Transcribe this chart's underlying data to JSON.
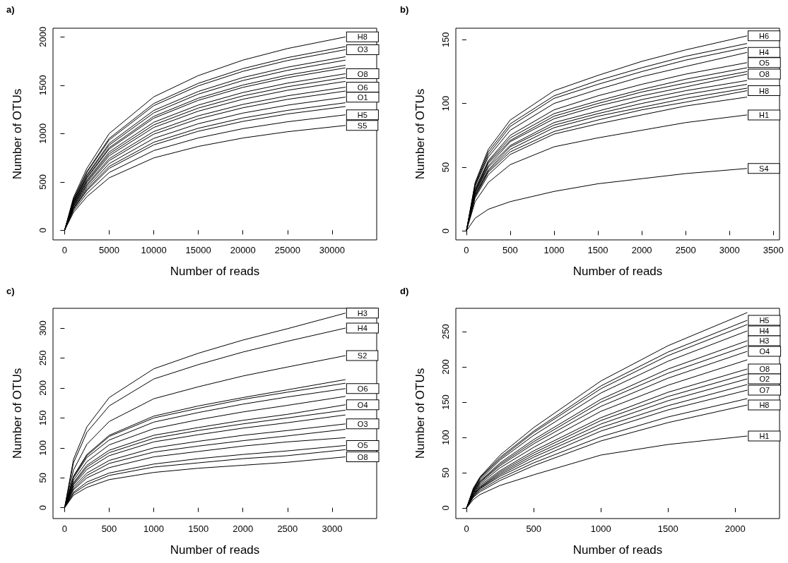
{
  "chart_data": [
    {
      "type": "line",
      "title": "a)",
      "xlabel": "Number of reads",
      "ylabel": "Number of OTUs",
      "color": "#000000",
      "marker": "none",
      "line_style": "solid",
      "grid": false,
      "legend": "right",
      "x": [
        0,
        1000,
        2500,
        5000,
        10000,
        15000,
        20000,
        25000,
        31500
      ],
      "xlim": [
        -1300,
        35000
      ],
      "xticks": [
        0,
        5000,
        10000,
        15000,
        20000,
        25000,
        30000
      ],
      "ylim": [
        -100,
        2090
      ],
      "yticks": [
        0,
        500,
        1000,
        1500,
        2000
      ],
      "series": [
        {
          "name": "H8",
          "values": [
            0,
            340,
            640,
            1000,
            1380,
            1600,
            1760,
            1880,
            2000
          ]
        },
        {
          "values": [
            0,
            323,
            608,
            950,
            1311,
            1520,
            1672,
            1786,
            1900
          ]
        },
        {
          "name": "O3",
          "values": [
            0,
            318,
            598,
            934,
            1289,
            1494,
            1644,
            1756,
            1868
          ]
        },
        {
          "values": [
            0,
            305,
            574,
            898,
            1239,
            1436,
            1580,
            1687,
            1795
          ]
        },
        {
          "values": [
            0,
            299,
            563,
            880,
            1214,
            1408,
            1549,
            1654,
            1760
          ]
        },
        {
          "values": [
            0,
            290,
            546,
            854,
            1178,
            1366,
            1502,
            1605,
            1707
          ]
        },
        {
          "values": [
            0,
            286,
            538,
            840,
            1159,
            1344,
            1478,
            1579,
            1680
          ]
        },
        {
          "name": "O8",
          "values": [
            0,
            275,
            518,
            810,
            1117,
            1295,
            1425,
            1522,
            1619
          ]
        },
        {
          "values": [
            0,
            269,
            506,
            790,
            1090,
            1264,
            1390,
            1485,
            1580
          ]
        },
        {
          "values": [
            0,
            262,
            493,
            770,
            1063,
            1232,
            1355,
            1448,
            1540
          ]
        },
        {
          "name": "O6",
          "values": [
            0,
            252,
            474,
            740,
            1021,
            1184,
            1302,
            1391,
            1480
          ]
        },
        {
          "values": [
            0,
            245,
            461,
            720,
            994,
            1152,
            1267,
            1354,
            1440
          ]
        },
        {
          "name": "O1",
          "values": [
            0,
            234,
            441,
            689,
            950,
            1102,
            1212,
            1294,
            1377
          ]
        },
        {
          "values": [
            0,
            224,
            422,
            660,
            910,
            1055,
            1161,
            1240,
            1319
          ]
        },
        {
          "values": [
            0,
            218,
            410,
            640,
            883,
            1024,
            1126,
            1203,
            1280
          ]
        },
        {
          "name": "H5",
          "values": [
            0,
            203,
            382,
            597,
            824,
            955,
            1051,
            1122,
            1194
          ]
        },
        {
          "name": "S5",
          "values": [
            0,
            184,
            347,
            542,
            748,
            867,
            954,
            1019,
            1084
          ]
        }
      ]
    },
    {
      "type": "line",
      "title": "b)",
      "xlabel": "Number of reads",
      "ylabel": "Number of OTUs",
      "color": "#000000",
      "marker": "none",
      "line_style": "solid",
      "grid": false,
      "legend": "right",
      "x": [
        0,
        100,
        250,
        500,
        1000,
        1500,
        2000,
        2500,
        3200
      ],
      "xlim": [
        -120,
        3570
      ],
      "xticks": [
        0,
        500,
        1000,
        1500,
        2000,
        2500,
        3000,
        3500
      ],
      "ylim": [
        -7,
        159
      ],
      "yticks": [
        0,
        50,
        100,
        150
      ],
      "series": [
        {
          "name": "H6",
          "values": [
            0,
            38,
            64,
            87,
            110,
            122,
            133,
            142,
            153
          ]
        },
        {
          "values": [
            0,
            37,
            62,
            84,
            106,
            118,
            128,
            137,
            147
          ]
        },
        {
          "values": [
            0,
            36,
            60,
            82,
            104,
            115,
            125,
            134,
            144
          ]
        },
        {
          "name": "H4",
          "values": [
            0,
            35,
            58,
            79,
            100,
            111,
            121,
            129,
            140
          ]
        },
        {
          "name": "O5",
          "values": [
            0,
            33,
            55,
            75,
            95,
            106,
            115,
            123,
            132
          ]
        },
        {
          "values": [
            0,
            32,
            54,
            73,
            92,
            102,
            111,
            119,
            128
          ]
        },
        {
          "values": [
            0,
            31,
            53,
            71,
            90,
            100,
            109,
            116,
            125
          ]
        },
        {
          "name": "O8",
          "values": [
            0,
            31,
            51,
            70,
            88,
            98,
            106,
            113,
            123
          ]
        },
        {
          "values": [
            0,
            30,
            50,
            67,
            85,
            94,
            103,
            110,
            118
          ]
        },
        {
          "values": [
            0,
            29,
            48,
            66,
            83,
            92,
            100,
            107,
            115
          ]
        },
        {
          "values": [
            0,
            28,
            47,
            64,
            81,
            90,
            97,
            104,
            112
          ]
        },
        {
          "name": "H8",
          "values": [
            0,
            27,
            46,
            62,
            78,
            87,
            95,
            101,
            110
          ]
        },
        {
          "values": [
            0,
            26,
            44,
            60,
            76,
            84,
            91,
            98,
            105
          ]
        },
        {
          "name": "H1",
          "values": [
            0,
            23,
            38,
            52,
            66,
            73,
            79,
            85,
            91
          ]
        },
        {
          "name": "S4",
          "values": [
            0,
            10,
            17,
            23,
            31,
            37,
            41,
            45,
            49
          ]
        }
      ]
    },
    {
      "type": "line",
      "title": "c)",
      "xlabel": "Number of reads",
      "ylabel": "Number of OTUs",
      "color": "#000000",
      "marker": "none",
      "line_style": "solid",
      "grid": false,
      "legend": "right",
      "x": [
        0,
        100,
        250,
        500,
        1000,
        1500,
        2000,
        2500,
        3150
      ],
      "xlim": [
        -130,
        3500
      ],
      "xticks": [
        0,
        500,
        1000,
        1500,
        2000,
        2500,
        3000
      ],
      "ylim": [
        -18,
        333
      ],
      "yticks": [
        0,
        50,
        100,
        150,
        200,
        250,
        300
      ],
      "series": [
        {
          "name": "H3",
          "values": [
            0,
            81,
            135,
            184,
            232,
            258,
            280,
            299,
            325
          ]
        },
        {
          "name": "H4",
          "values": [
            0,
            75,
            126,
            170,
            215,
            239,
            260,
            278,
            300
          ]
        },
        {
          "name": "S2",
          "values": [
            0,
            63,
            106,
            144,
            182,
            202,
            220,
            235,
            254
          ]
        },
        {
          "values": [
            0,
            53,
            89,
            121,
            153,
            170,
            184,
            197,
            214
          ]
        },
        {
          "values": [
            0,
            52,
            87,
            119,
            150,
            166,
            181,
            193,
            208
          ]
        },
        {
          "name": "O6",
          "values": [
            0,
            50,
            84,
            113,
            143,
            159,
            173,
            185,
            199
          ]
        },
        {
          "values": [
            0,
            46,
            77,
            105,
            132,
            147,
            160,
            171,
            186
          ]
        },
        {
          "name": "O4",
          "values": [
            0,
            42,
            71,
            96,
            121,
            134,
            146,
            156,
            172
          ]
        },
        {
          "values": [
            0,
            40,
            68,
            92,
            116,
            129,
            140,
            150,
            163
          ]
        },
        {
          "values": [
            0,
            38,
            64,
            87,
            110,
            122,
            133,
            142,
            155
          ]
        },
        {
          "name": "O3",
          "values": [
            0,
            35,
            58,
            79,
            100,
            111,
            121,
            129,
            140
          ]
        },
        {
          "values": [
            0,
            32,
            54,
            74,
            93,
            103,
            112,
            120,
            131
          ]
        },
        {
          "values": [
            0,
            30,
            50,
            67,
            85,
            94,
            103,
            110,
            117
          ]
        },
        {
          "name": "O5",
          "values": [
            0,
            26,
            43,
            58,
            73,
            82,
            89,
            95,
            104
          ]
        },
        {
          "values": [
            0,
            24,
            39,
            54,
            68,
            75,
            82,
            87,
            97
          ]
        },
        {
          "name": "O8",
          "values": [
            0,
            21,
            34,
            47,
            59,
            66,
            71,
            76,
            85
          ]
        }
      ]
    },
    {
      "type": "line",
      "title": "d)",
      "xlabel": "Number of reads",
      "ylabel": "Number of OTUs",
      "color": "#000000",
      "marker": "none",
      "line_style": "solid",
      "grid": false,
      "legend": "right",
      "x": [
        0,
        50,
        100,
        250,
        500,
        1000,
        1500,
        2090
      ],
      "xlim": [
        -80,
        2330
      ],
      "xticks": [
        0,
        500,
        1000,
        1500,
        2000
      ],
      "ylim": [
        -15,
        283
      ],
      "yticks": [
        0,
        50,
        100,
        150,
        200,
        250
      ],
      "series": [
        {
          "values": [
            0,
            28,
            44,
            75,
            114,
            180,
            230,
            277
          ]
        },
        {
          "name": "H5",
          "values": [
            0,
            27,
            43,
            72,
            109,
            173,
            221,
            266
          ]
        },
        {
          "values": [
            0,
            26,
            42,
            70,
            107,
            169,
            216,
            260
          ]
        },
        {
          "name": "H4",
          "values": [
            0,
            25,
            40,
            68,
            103,
            163,
            208,
            251
          ]
        },
        {
          "name": "H3",
          "values": [
            0,
            24,
            38,
            64,
            97,
            154,
            197,
            237
          ]
        },
        {
          "values": [
            0,
            23,
            37,
            62,
            94,
            150,
            191,
            230
          ]
        },
        {
          "name": "O4",
          "values": [
            0,
            22,
            36,
            60,
            91,
            144,
            184,
            222
          ]
        },
        {
          "values": [
            0,
            21,
            34,
            57,
            86,
            137,
            174,
            210
          ]
        },
        {
          "name": "O8",
          "values": [
            0,
            20,
            32,
            53,
            81,
            128,
            164,
            197
          ]
        },
        {
          "values": [
            0,
            19,
            30,
            51,
            78,
            124,
            158,
            190
          ]
        },
        {
          "name": "O2",
          "values": [
            0,
            18,
            29,
            49,
            75,
            119,
            152,
            183
          ]
        },
        {
          "values": [
            0,
            18,
            28,
            47,
            72,
            114,
            145,
            175
          ]
        },
        {
          "name": "O7",
          "values": [
            0,
            17,
            27,
            45,
            68,
            109,
            139,
            167
          ]
        },
        {
          "values": [
            0,
            16,
            25,
            42,
            64,
            101,
            129,
            155
          ]
        },
        {
          "name": "H8",
          "values": [
            0,
            15,
            23,
            39,
            60,
            95,
            121,
            146
          ]
        },
        {
          "name": "H1",
          "values": [
            0,
            12,
            19,
            32,
            47,
            75,
            90,
            102
          ]
        }
      ]
    }
  ]
}
